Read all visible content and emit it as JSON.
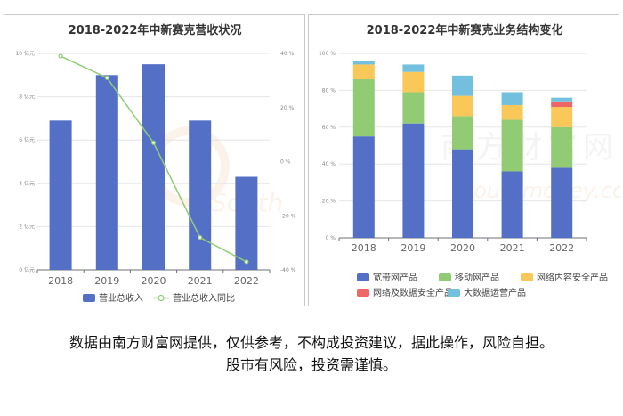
{
  "chart_data": [
    {
      "type": "bar",
      "title": "2018-2022年中新赛克营收状况",
      "categories": [
        "2018",
        "2019",
        "2020",
        "2021",
        "2022"
      ],
      "series": [
        {
          "name": "营业总收入",
          "type": "bar",
          "axis": "left",
          "values": [
            6.9,
            9.0,
            9.5,
            6.9,
            4.3
          ]
        },
        {
          "name": "营业总收入同比",
          "type": "line",
          "axis": "right",
          "values": [
            39,
            31,
            7,
            -28,
            -37
          ]
        }
      ],
      "y_left": {
        "min": 0,
        "max": 10,
        "ticks": [
          "0 亿元",
          "2 亿元",
          "4 亿元",
          "6 亿元",
          "8 亿元",
          "10 亿元"
        ]
      },
      "y_right": {
        "min": -40,
        "max": 40,
        "ticks": [
          "-40 %",
          "-20 %",
          "0 %",
          "20 %",
          "40 %"
        ]
      },
      "colors": {
        "bar": "#5470c6",
        "line": "#91cc75"
      },
      "legend_position": "bottom"
    },
    {
      "type": "bar",
      "stacked": true,
      "title": "2018-2022年中新赛克业务结构变化",
      "categories": [
        "2018",
        "2019",
        "2020",
        "2021",
        "2022"
      ],
      "series": [
        {
          "name": "宽带网产品",
          "color": "#5470c6",
          "values": [
            55,
            62,
            48,
            36,
            38
          ]
        },
        {
          "name": "移动网产品",
          "color": "#91cc75",
          "values": [
            31,
            17,
            18,
            28,
            22
          ]
        },
        {
          "name": "网络内容安全产品",
          "color": "#fac858",
          "values": [
            8,
            11,
            11,
            8,
            11
          ]
        },
        {
          "name": "网络及数据安全产品",
          "color": "#ee6666",
          "values": [
            0,
            0,
            0,
            0,
            3
          ]
        },
        {
          "name": "大数据运营产品",
          "color": "#73c0de",
          "values": [
            2,
            4,
            11,
            7,
            2
          ]
        }
      ],
      "y": {
        "min": 0,
        "max": 100,
        "ticks": [
          "0 %",
          "20 %",
          "40 %",
          "60 %",
          "80 %",
          "100 %"
        ]
      },
      "legend_position": "bottom"
    }
  ],
  "watermark": {
    "chinese": "南方财富网",
    "latin": "Southmoney.com"
  },
  "disclaimer": {
    "line1": "数据由南方财富网提供，仅供参考，不构成投资建议，据此操作，风险自担。",
    "line2": "股市有风险，投资需谨慎。"
  }
}
